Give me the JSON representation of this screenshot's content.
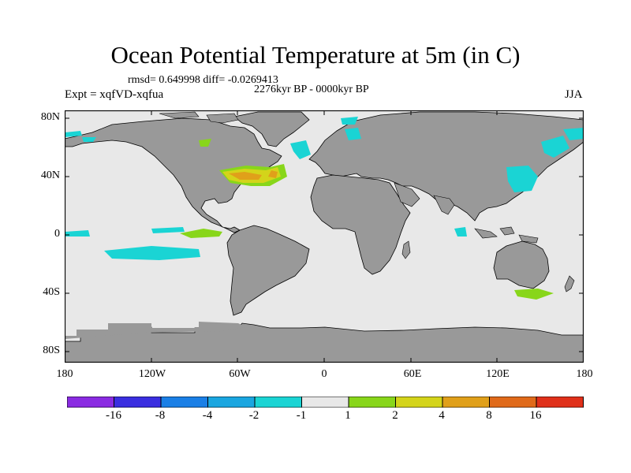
{
  "title": "Ocean Potential Temperature at 5m (in C)",
  "stats": "rmsd= 0.649998 diff= -0.0269413",
  "period": "2276kyr BP - 0000kyr BP",
  "experiment": "Expt = xqfVD-xqfua",
  "season": "JJA",
  "lat_labels": [
    "80N",
    "40N",
    "0",
    "40S",
    "80S"
  ],
  "lon_labels": [
    "180",
    "120W",
    "60W",
    "0",
    "60E",
    "120E",
    "180"
  ],
  "colorbar": {
    "colors": [
      "#8a2be2",
      "#3a2ee0",
      "#1a7fe6",
      "#1aa6e0",
      "#1ad4d4",
      "#e8e8e8",
      "#88d61a",
      "#d4d41a",
      "#e0a01a",
      "#e06a1a",
      "#e0301a"
    ],
    "labels": [
      "-16",
      "-8",
      "-4",
      "-2",
      "-1",
      "1",
      "2",
      "4",
      "8",
      "16"
    ]
  },
  "palette": {
    "land": "#999999",
    "ocean_neutral": "#e8e8e8",
    "cool_anomaly": "#1ad4d4",
    "warm_anomaly_1": "#88d61a",
    "warm_anomaly_2": "#d4d41a",
    "warm_anomaly_3": "#e0a01a"
  }
}
